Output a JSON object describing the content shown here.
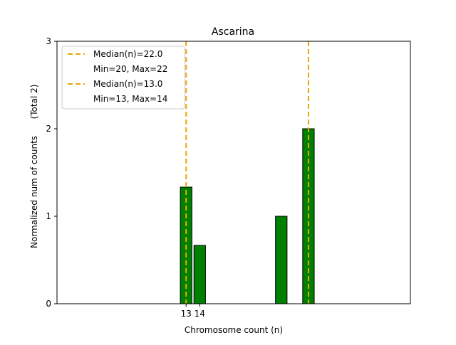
{
  "chart_data": {
    "type": "bar",
    "title": "Ascarina",
    "xlabel": "Chromosome count (n)",
    "ylabel": "Normalized num of counts",
    "ylabel_note": "(Total 2)",
    "xlim": [
      3.5,
      29.5
    ],
    "ylim": [
      0,
      3
    ],
    "x_ticks": [
      13,
      14
    ],
    "y_ticks": [
      0,
      1,
      2,
      3
    ],
    "bar_width": 0.85,
    "bar_color": "#008000",
    "bar_edge_color": "#000000",
    "bars": [
      {
        "x": 13,
        "value": 1.333
      },
      {
        "x": 14,
        "value": 0.667
      },
      {
        "x": 20,
        "value": 1.0
      },
      {
        "x": 22,
        "value": 2.0
      }
    ],
    "median_lines": [
      {
        "x": 22,
        "label": "Median(n)=22.0",
        "range_label": "Min=20, Max=22",
        "color": "#e6a800"
      },
      {
        "x": 13,
        "label": "Median(n)=13.0",
        "range_label": "Min=13, Max=14",
        "color": "#e6a800"
      }
    ],
    "legend_position": "top-left",
    "grid": false
  }
}
